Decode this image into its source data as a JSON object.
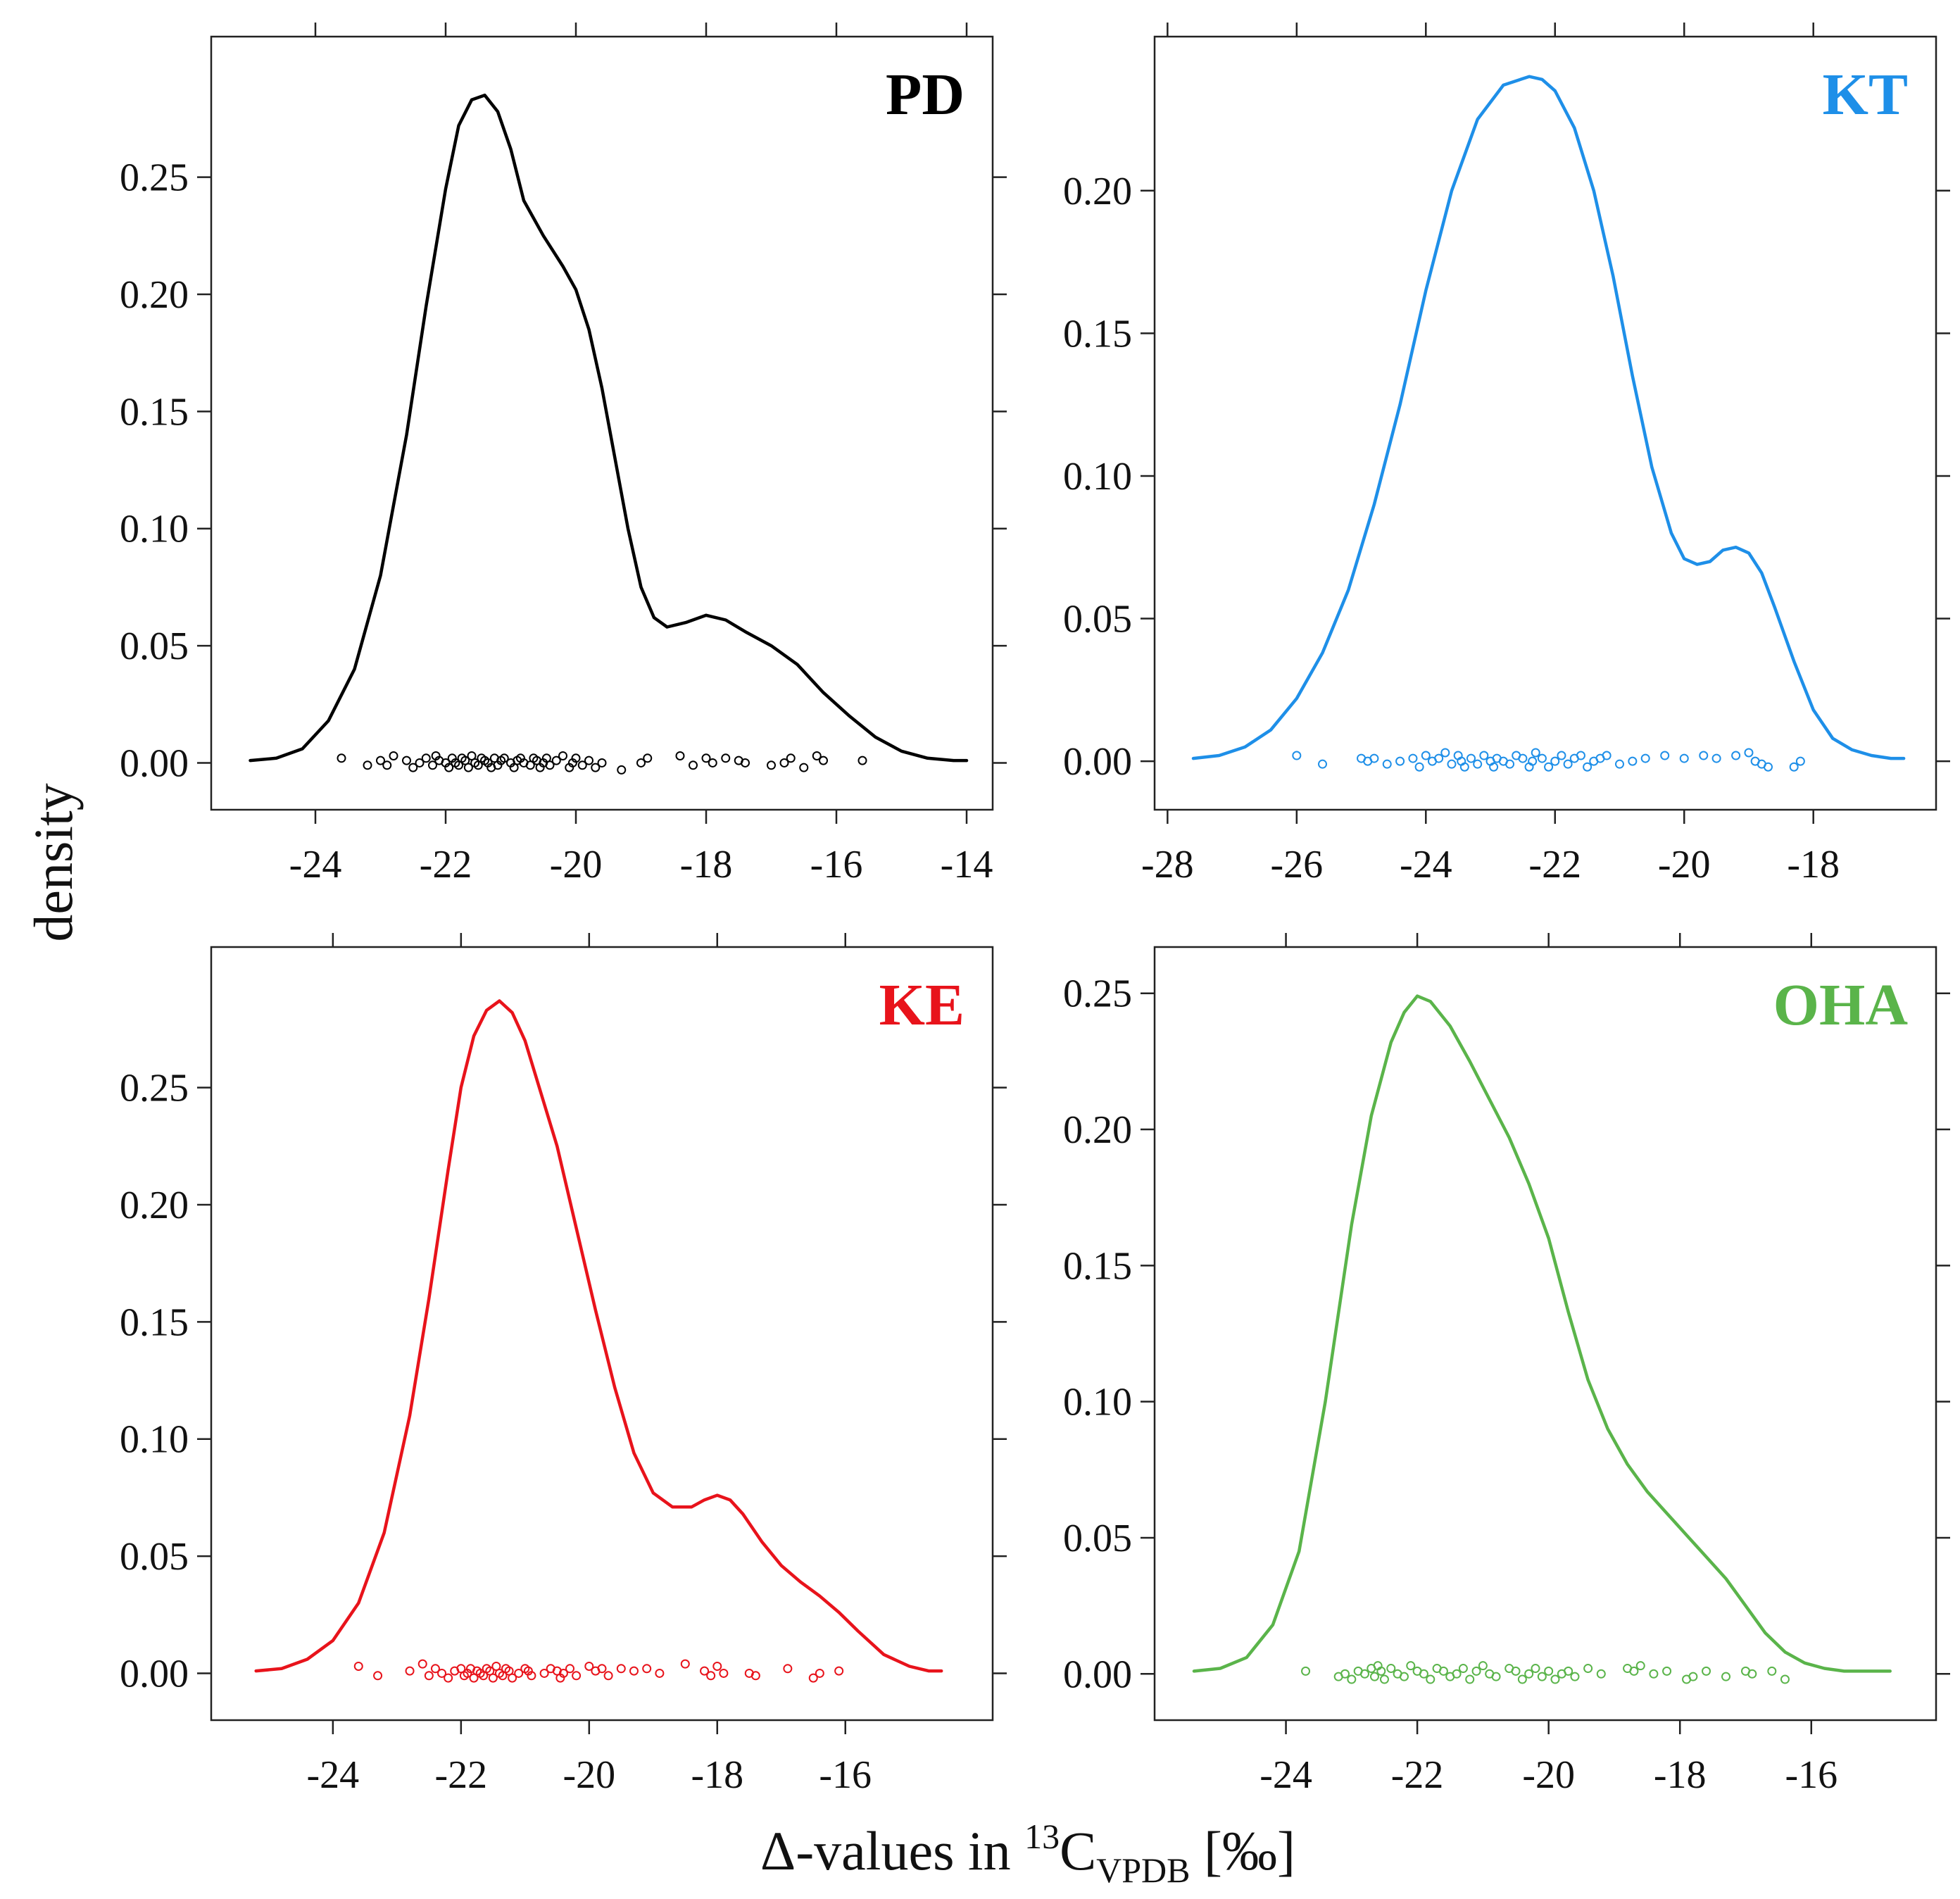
{
  "figure": {
    "ylabel": "density",
    "xlabel": {
      "prefix": "Δ-values in ",
      "isotope": "13",
      "element": "C",
      "subscript": "VPDB",
      "unit": " [‰]"
    }
  },
  "chart_data": [
    {
      "type": "line",
      "label": "PD",
      "color": "#000000",
      "xlim": [
        -25.6,
        -13.6
      ],
      "ylim": [
        -0.02,
        0.31
      ],
      "xticks": [
        -24,
        -22,
        -20,
        -18,
        -16,
        -14
      ],
      "xtick_labels": [
        "-24",
        "-22",
        "-20",
        "-18",
        "-16",
        "-14"
      ],
      "yticks": [
        0.0,
        0.05,
        0.1,
        0.15,
        0.2,
        0.25
      ],
      "ytick_labels": [
        "0.00",
        "0.05",
        "0.10",
        "0.15",
        "0.20",
        "0.25"
      ],
      "ylabel": "density",
      "xlabel": "Δ-values in 13C VPDB [‰]",
      "curve": {
        "x": [
          -25.0,
          -24.6,
          -24.2,
          -23.8,
          -23.4,
          -23.0,
          -22.6,
          -22.3,
          -22.0,
          -21.8,
          -21.6,
          -21.4,
          -21.2,
          -21.0,
          -20.8,
          -20.5,
          -20.2,
          -20.0,
          -19.8,
          -19.6,
          -19.4,
          -19.2,
          -19.0,
          -18.8,
          -18.6,
          -18.3,
          -18.0,
          -17.7,
          -17.4,
          -17.0,
          -16.6,
          -16.2,
          -15.8,
          -15.4,
          -15.0,
          -14.6,
          -14.2,
          -14.0
        ],
        "y": [
          0.001,
          0.002,
          0.006,
          0.018,
          0.04,
          0.08,
          0.14,
          0.195,
          0.245,
          0.272,
          0.283,
          0.285,
          0.278,
          0.262,
          0.24,
          0.225,
          0.212,
          0.202,
          0.185,
          0.16,
          0.13,
          0.1,
          0.075,
          0.062,
          0.058,
          0.06,
          0.063,
          0.061,
          0.056,
          0.05,
          0.042,
          0.03,
          0.02,
          0.011,
          0.005,
          0.002,
          0.001,
          0.001
        ]
      },
      "rug": {
        "x": [
          -23.6,
          -23.2,
          -23.0,
          -22.9,
          -22.8,
          -22.6,
          -22.5,
          -22.4,
          -22.3,
          -22.2,
          -22.15,
          -22.1,
          -22.0,
          -21.95,
          -21.9,
          -21.85,
          -21.8,
          -21.75,
          -21.7,
          -21.65,
          -21.6,
          -21.55,
          -21.5,
          -21.45,
          -21.4,
          -21.35,
          -21.3,
          -21.25,
          -21.2,
          -21.15,
          -21.1,
          -21.0,
          -20.95,
          -20.9,
          -20.85,
          -20.8,
          -20.7,
          -20.65,
          -20.6,
          -20.55,
          -20.5,
          -20.45,
          -20.4,
          -20.3,
          -20.2,
          -20.1,
          -20.05,
          -20.0,
          -19.9,
          -19.8,
          -19.7,
          -19.6,
          -19.3,
          -19.0,
          -18.9,
          -18.4,
          -18.2,
          -18.0,
          -17.9,
          -17.7,
          -17.5,
          -17.4,
          -17.0,
          -16.8,
          -16.7,
          -16.5,
          -16.3,
          -16.2,
          -15.6
        ],
        "y": [
          0.002,
          -0.001,
          0.001,
          -0.001,
          0.003,
          0.001,
          -0.002,
          0.0,
          0.002,
          -0.001,
          0.003,
          0.001,
          0.0,
          -0.002,
          0.002,
          0.0,
          -0.001,
          0.002,
          0.001,
          -0.002,
          0.003,
          0.0,
          -0.001,
          0.002,
          0.001,
          0.0,
          -0.002,
          0.002,
          -0.001,
          0.001,
          0.002,
          0.0,
          -0.002,
          0.001,
          0.002,
          0.0,
          -0.001,
          0.002,
          0.001,
          -0.002,
          0.0,
          0.002,
          -0.001,
          0.001,
          0.003,
          -0.002,
          0.0,
          0.002,
          -0.001,
          0.001,
          -0.002,
          0.0,
          -0.003,
          0.0,
          0.002,
          0.003,
          -0.001,
          0.002,
          0.0,
          0.002,
          0.001,
          0.0,
          -0.001,
          0.0,
          0.002,
          -0.002,
          0.003,
          0.001,
          0.001
        ]
      }
    },
    {
      "type": "line",
      "label": "KT",
      "color": "#1E8FE8",
      "xlim": [
        -28.2,
        -16.1
      ],
      "ylim": [
        -0.017,
        0.254
      ],
      "xticks": [
        -28,
        -26,
        -24,
        -22,
        -20,
        -18
      ],
      "xtick_labels": [
        "-28",
        "-26",
        "-24",
        "-22",
        "-20",
        "-18"
      ],
      "yticks": [
        0.0,
        0.05,
        0.1,
        0.15,
        0.2
      ],
      "ytick_labels": [
        "0.00",
        "0.05",
        "0.10",
        "0.15",
        "0.20"
      ],
      "ylabel": "density",
      "xlabel": "Δ-values in 13C VPDB [‰]",
      "curve": {
        "x": [
          -27.6,
          -27.2,
          -26.8,
          -26.4,
          -26.0,
          -25.6,
          -25.2,
          -24.8,
          -24.4,
          -24.0,
          -23.6,
          -23.2,
          -22.8,
          -22.4,
          -22.2,
          -22.0,
          -21.7,
          -21.4,
          -21.1,
          -20.8,
          -20.5,
          -20.2,
          -20.0,
          -19.8,
          -19.6,
          -19.4,
          -19.2,
          -19.0,
          -18.8,
          -18.6,
          -18.3,
          -18.0,
          -17.7,
          -17.4,
          -17.1,
          -16.8,
          -16.6
        ],
        "y": [
          0.001,
          0.002,
          0.005,
          0.011,
          0.022,
          0.038,
          0.06,
          0.09,
          0.125,
          0.165,
          0.2,
          0.225,
          0.237,
          0.24,
          0.239,
          0.235,
          0.222,
          0.2,
          0.17,
          0.135,
          0.103,
          0.08,
          0.071,
          0.069,
          0.07,
          0.074,
          0.075,
          0.073,
          0.066,
          0.054,
          0.035,
          0.018,
          0.008,
          0.004,
          0.002,
          0.001,
          0.001
        ]
      },
      "rug": {
        "x": [
          -26.0,
          -25.6,
          -25.0,
          -24.9,
          -24.8,
          -24.6,
          -24.4,
          -24.2,
          -24.1,
          -24.0,
          -23.9,
          -23.8,
          -23.7,
          -23.6,
          -23.5,
          -23.45,
          -23.4,
          -23.3,
          -23.2,
          -23.1,
          -23.0,
          -22.95,
          -22.9,
          -22.8,
          -22.7,
          -22.6,
          -22.5,
          -22.4,
          -22.35,
          -22.3,
          -22.2,
          -22.1,
          -22.0,
          -21.9,
          -21.8,
          -21.7,
          -21.6,
          -21.5,
          -21.4,
          -21.3,
          -21.2,
          -21.0,
          -20.8,
          -20.6,
          -20.3,
          -20.0,
          -19.7,
          -19.5,
          -19.2,
          -19.0,
          -18.9,
          -18.8,
          -18.7,
          -18.3,
          -18.2
        ],
        "y": [
          0.002,
          -0.001,
          0.001,
          0.0,
          0.001,
          -0.001,
          0.0,
          0.001,
          -0.002,
          0.002,
          0.0,
          0.001,
          0.003,
          -0.001,
          0.002,
          0.0,
          -0.002,
          0.001,
          -0.001,
          0.002,
          0.0,
          -0.002,
          0.001,
          0.0,
          -0.001,
          0.002,
          0.001,
          -0.002,
          0.0,
          0.003,
          0.001,
          -0.002,
          0.0,
          0.002,
          -0.001,
          0.001,
          0.002,
          -0.002,
          0.0,
          0.001,
          0.002,
          -0.001,
          0.0,
          0.001,
          0.002,
          0.001,
          0.002,
          0.001,
          0.002,
          0.003,
          0.0,
          -0.001,
          -0.002,
          -0.002,
          0.0
        ]
      }
    },
    {
      "type": "line",
      "label": "KE",
      "color": "#E8131B",
      "xlim": [
        -25.9,
        -13.7
      ],
      "ylim": [
        -0.02,
        0.31
      ],
      "xticks": [
        -24,
        -22,
        -20,
        -18,
        -16
      ],
      "xtick_labels": [
        "-24",
        "-22",
        "-20",
        "-18",
        "-16"
      ],
      "yticks": [
        0.0,
        0.05,
        0.1,
        0.15,
        0.2,
        0.25
      ],
      "ytick_labels": [
        "0.00",
        "0.05",
        "0.10",
        "0.15",
        "0.20",
        "0.25"
      ],
      "ylabel": "density",
      "xlabel": "Δ-values in 13C VPDB [‰]",
      "curve": {
        "x": [
          -25.2,
          -24.8,
          -24.4,
          -24.0,
          -23.6,
          -23.2,
          -22.8,
          -22.5,
          -22.2,
          -22.0,
          -21.8,
          -21.6,
          -21.4,
          -21.2,
          -21.0,
          -20.8,
          -20.5,
          -20.2,
          -19.9,
          -19.6,
          -19.3,
          -19.0,
          -18.7,
          -18.4,
          -18.2,
          -18.0,
          -17.8,
          -17.6,
          -17.3,
          -17.0,
          -16.7,
          -16.4,
          -16.1,
          -15.8,
          -15.4,
          -15.0,
          -14.7,
          -14.5
        ],
        "y": [
          0.001,
          0.002,
          0.006,
          0.014,
          0.03,
          0.06,
          0.11,
          0.16,
          0.215,
          0.25,
          0.272,
          0.283,
          0.287,
          0.282,
          0.27,
          0.252,
          0.225,
          0.19,
          0.155,
          0.122,
          0.094,
          0.077,
          0.071,
          0.071,
          0.074,
          0.076,
          0.074,
          0.068,
          0.056,
          0.046,
          0.039,
          0.033,
          0.026,
          0.018,
          0.008,
          0.003,
          0.001,
          0.001
        ]
      },
      "rug": {
        "x": [
          -23.6,
          -23.3,
          -22.8,
          -22.6,
          -22.5,
          -22.4,
          -22.3,
          -22.2,
          -22.1,
          -22.0,
          -21.95,
          -21.9,
          -21.85,
          -21.8,
          -21.75,
          -21.7,
          -21.65,
          -21.6,
          -21.55,
          -21.5,
          -21.45,
          -21.4,
          -21.35,
          -21.3,
          -21.25,
          -21.2,
          -21.1,
          -21.0,
          -20.95,
          -20.9,
          -20.7,
          -20.6,
          -20.5,
          -20.45,
          -20.4,
          -20.3,
          -20.2,
          -20.0,
          -19.9,
          -19.8,
          -19.7,
          -19.5,
          -19.3,
          -19.1,
          -18.9,
          -18.5,
          -18.2,
          -18.1,
          -18.0,
          -17.9,
          -17.5,
          -17.4,
          -16.9,
          -16.5,
          -16.4,
          -16.1
        ],
        "y": [
          0.003,
          -0.001,
          0.001,
          0.004,
          -0.001,
          0.002,
          0.0,
          -0.002,
          0.001,
          0.002,
          -0.001,
          0.0,
          0.002,
          -0.002,
          0.001,
          0.0,
          -0.001,
          0.002,
          0.001,
          -0.002,
          0.003,
          0.0,
          -0.001,
          0.002,
          0.001,
          -0.002,
          0.0,
          0.002,
          0.001,
          -0.001,
          0.0,
          0.002,
          0.001,
          -0.002,
          0.0,
          0.002,
          -0.001,
          0.003,
          0.001,
          0.002,
          -0.001,
          0.002,
          0.001,
          0.002,
          0.0,
          0.004,
          0.001,
          -0.001,
          0.003,
          0.0,
          0.0,
          -0.001,
          0.002,
          -0.002,
          0.0,
          0.001
        ]
      }
    },
    {
      "type": "line",
      "label": "OHA",
      "color": "#5AB44A",
      "xlim": [
        -26.0,
        -14.1
      ],
      "ylim": [
        -0.017,
        0.267
      ],
      "xticks": [
        -24,
        -22,
        -20,
        -18,
        -16
      ],
      "xtick_labels": [
        "-24",
        "-22",
        "-20",
        "-18",
        "-16"
      ],
      "yticks": [
        0.0,
        0.05,
        0.1,
        0.15,
        0.2,
        0.25
      ],
      "ytick_labels": [
        "0.00",
        "0.05",
        "0.10",
        "0.15",
        "0.20",
        "0.25"
      ],
      "ylabel": "density",
      "xlabel": "Δ-values in 13C VPDB [‰]",
      "curve": {
        "x": [
          -25.4,
          -25.0,
          -24.6,
          -24.2,
          -23.8,
          -23.4,
          -23.0,
          -22.7,
          -22.4,
          -22.2,
          -22.0,
          -21.8,
          -21.5,
          -21.2,
          -20.9,
          -20.6,
          -20.3,
          -20.0,
          -19.7,
          -19.4,
          -19.1,
          -18.8,
          -18.5,
          -18.2,
          -17.9,
          -17.6,
          -17.3,
          -17.0,
          -16.7,
          -16.4,
          -16.1,
          -15.8,
          -15.5,
          -15.2,
          -14.9,
          -14.8
        ],
        "y": [
          0.001,
          0.002,
          0.006,
          0.018,
          0.045,
          0.1,
          0.165,
          0.205,
          0.232,
          0.243,
          0.249,
          0.247,
          0.238,
          0.225,
          0.211,
          0.197,
          0.18,
          0.16,
          0.133,
          0.108,
          0.09,
          0.077,
          0.067,
          0.059,
          0.051,
          0.043,
          0.035,
          0.025,
          0.015,
          0.008,
          0.004,
          0.002,
          0.001,
          0.001,
          0.001,
          0.001
        ]
      },
      "rug": {
        "x": [
          -23.7,
          -23.2,
          -23.1,
          -23.0,
          -22.9,
          -22.8,
          -22.7,
          -22.65,
          -22.6,
          -22.55,
          -22.5,
          -22.4,
          -22.3,
          -22.2,
          -22.1,
          -22.0,
          -21.9,
          -21.8,
          -21.7,
          -21.6,
          -21.5,
          -21.4,
          -21.3,
          -21.2,
          -21.1,
          -21.0,
          -20.9,
          -20.8,
          -20.6,
          -20.5,
          -20.4,
          -20.3,
          -20.2,
          -20.1,
          -20.0,
          -19.9,
          -19.8,
          -19.7,
          -19.6,
          -19.4,
          -19.2,
          -18.8,
          -18.7,
          -18.6,
          -18.4,
          -18.2,
          -17.9,
          -17.8,
          -17.6,
          -17.3,
          -17.0,
          -16.9,
          -16.6,
          -16.4
        ],
        "y": [
          0.001,
          -0.001,
          0.0,
          -0.002,
          0.001,
          0.0,
          0.002,
          -0.001,
          0.003,
          0.001,
          -0.002,
          0.002,
          0.0,
          -0.001,
          0.003,
          0.001,
          0.0,
          -0.002,
          0.002,
          0.001,
          -0.001,
          0.0,
          0.002,
          -0.002,
          0.001,
          0.003,
          0.0,
          -0.001,
          0.002,
          0.001,
          -0.002,
          0.0,
          0.002,
          -0.001,
          0.001,
          -0.002,
          0.0,
          0.001,
          -0.001,
          0.002,
          0.0,
          0.002,
          0.001,
          0.003,
          0.0,
          0.001,
          -0.002,
          -0.001,
          0.001,
          -0.001,
          0.001,
          0.0,
          0.001,
          -0.002
        ]
      }
    }
  ]
}
